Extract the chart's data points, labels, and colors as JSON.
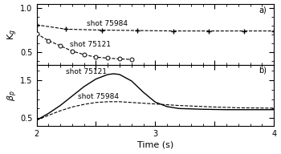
{
  "xlim": [
    2,
    4
  ],
  "xlabel": "Time (s)",
  "panel_a": {
    "ylabel": "K$_g$",
    "ylim": [
      0.35,
      1.05
    ],
    "yticks": [
      0.5,
      1.0
    ],
    "label": "a)",
    "shot75984_x": [
      2.0,
      2.25,
      2.55,
      2.85,
      3.15,
      3.45,
      3.75,
      4.0
    ],
    "shot75984_y": [
      0.81,
      0.76,
      0.75,
      0.745,
      0.74,
      0.74,
      0.74,
      0.74
    ],
    "shot75121_x": [
      2.0,
      2.1,
      2.2,
      2.3,
      2.4,
      2.5,
      2.6,
      2.7,
      2.8
    ],
    "shot75121_y": [
      0.71,
      0.63,
      0.57,
      0.51,
      0.47,
      0.44,
      0.43,
      0.42,
      0.415
    ]
  },
  "panel_b": {
    "ylabel": "$\\beta_p$",
    "ylim": [
      0.28,
      1.9
    ],
    "yticks": [
      0.5,
      1.5
    ],
    "label": "b)",
    "shot75121_x": [
      2.0,
      2.1,
      2.2,
      2.3,
      2.4,
      2.5,
      2.6,
      2.65,
      2.7,
      2.8,
      2.9,
      3.0,
      3.1,
      3.2,
      3.4,
      3.6,
      3.8,
      4.0
    ],
    "shot75121_y": [
      0.44,
      0.62,
      0.83,
      1.08,
      1.33,
      1.53,
      1.65,
      1.67,
      1.65,
      1.48,
      1.18,
      0.92,
      0.8,
      0.75,
      0.73,
      0.72,
      0.72,
      0.72
    ],
    "shot75984_x": [
      2.0,
      2.1,
      2.2,
      2.3,
      2.4,
      2.5,
      2.6,
      2.7,
      2.8,
      2.9,
      3.0,
      3.2,
      3.5,
      3.7,
      4.0
    ],
    "shot75984_y": [
      0.44,
      0.57,
      0.69,
      0.79,
      0.86,
      0.91,
      0.93,
      0.93,
      0.91,
      0.89,
      0.87,
      0.83,
      0.79,
      0.77,
      0.76
    ]
  },
  "bg_color": "white",
  "fontsize_label": 7,
  "fontsize_tick": 7,
  "fontsize_annotation": 6.5
}
